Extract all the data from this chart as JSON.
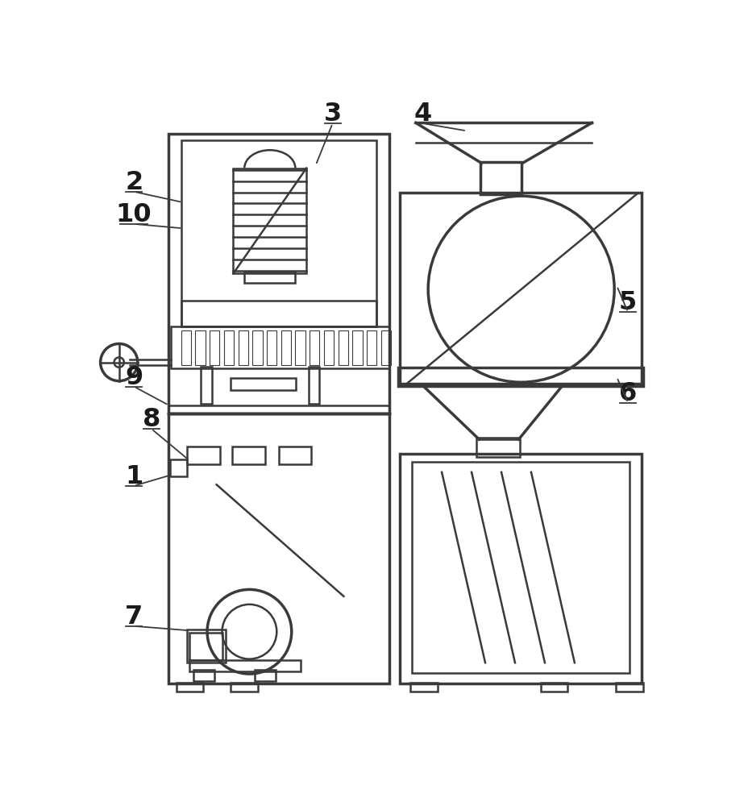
{
  "bg": "#ffffff",
  "lc": "#3a3a3a",
  "lw": 1.8,
  "lw2": 2.5,
  "lw3": 1.2
}
